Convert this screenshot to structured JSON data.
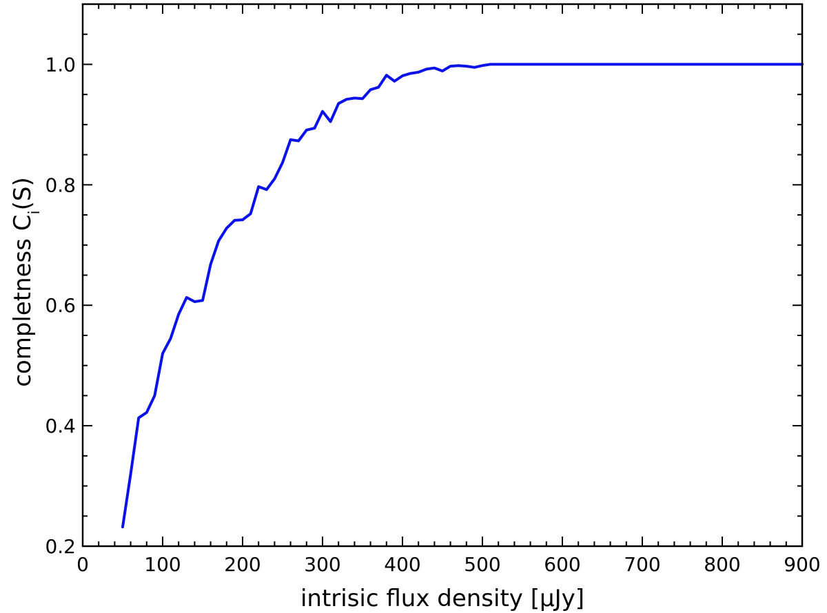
{
  "chart_data": {
    "type": "line",
    "title": "",
    "xlabel": "intrisic flux density [μJy]",
    "ylabel": {
      "main": "completness C",
      "subscript": "i",
      "suffix": "(S)"
    },
    "xlim": [
      0,
      900
    ],
    "ylim": [
      0.2,
      1.1
    ],
    "x_ticks": [
      0,
      100,
      200,
      300,
      400,
      500,
      600,
      700,
      800,
      900
    ],
    "x_tick_labels": [
      "0",
      "100",
      "200",
      "300",
      "400",
      "500",
      "600",
      "700",
      "800",
      "900"
    ],
    "y_ticks": [
      0.2,
      0.4,
      0.6,
      0.8,
      1.0
    ],
    "y_tick_labels": [
      "0.2",
      "0.4",
      "0.6",
      "0.8",
      "1.0"
    ],
    "grid": false,
    "series": [
      {
        "color": "#0a12e8",
        "x": [
          50,
          60,
          70,
          80,
          90,
          100,
          110,
          115,
          120,
          130,
          140,
          150,
          160,
          170,
          180,
          190,
          200,
          210,
          220,
          230,
          240,
          250,
          260,
          270,
          280,
          290,
          300,
          310,
          320,
          330,
          340,
          350,
          360,
          370,
          380,
          390,
          400,
          410,
          420,
          430,
          440,
          450,
          460,
          470,
          480,
          490,
          500,
          510,
          520,
          600,
          700,
          800,
          900
        ],
        "y": [
          0.232,
          0.32,
          0.413,
          0.422,
          0.45,
          0.52,
          0.545,
          0.565,
          0.585,
          0.613,
          0.606,
          0.608,
          0.668,
          0.707,
          0.728,
          0.741,
          0.742,
          0.752,
          0.797,
          0.792,
          0.81,
          0.837,
          0.875,
          0.873,
          0.891,
          0.894,
          0.922,
          0.905,
          0.935,
          0.942,
          0.944,
          0.943,
          0.958,
          0.962,
          0.982,
          0.972,
          0.981,
          0.985,
          0.987,
          0.992,
          0.994,
          0.989,
          0.997,
          0.998,
          0.997,
          0.995,
          0.998,
          1.0,
          1.0,
          1.0,
          1.0,
          1.0,
          1.0
        ]
      }
    ]
  }
}
